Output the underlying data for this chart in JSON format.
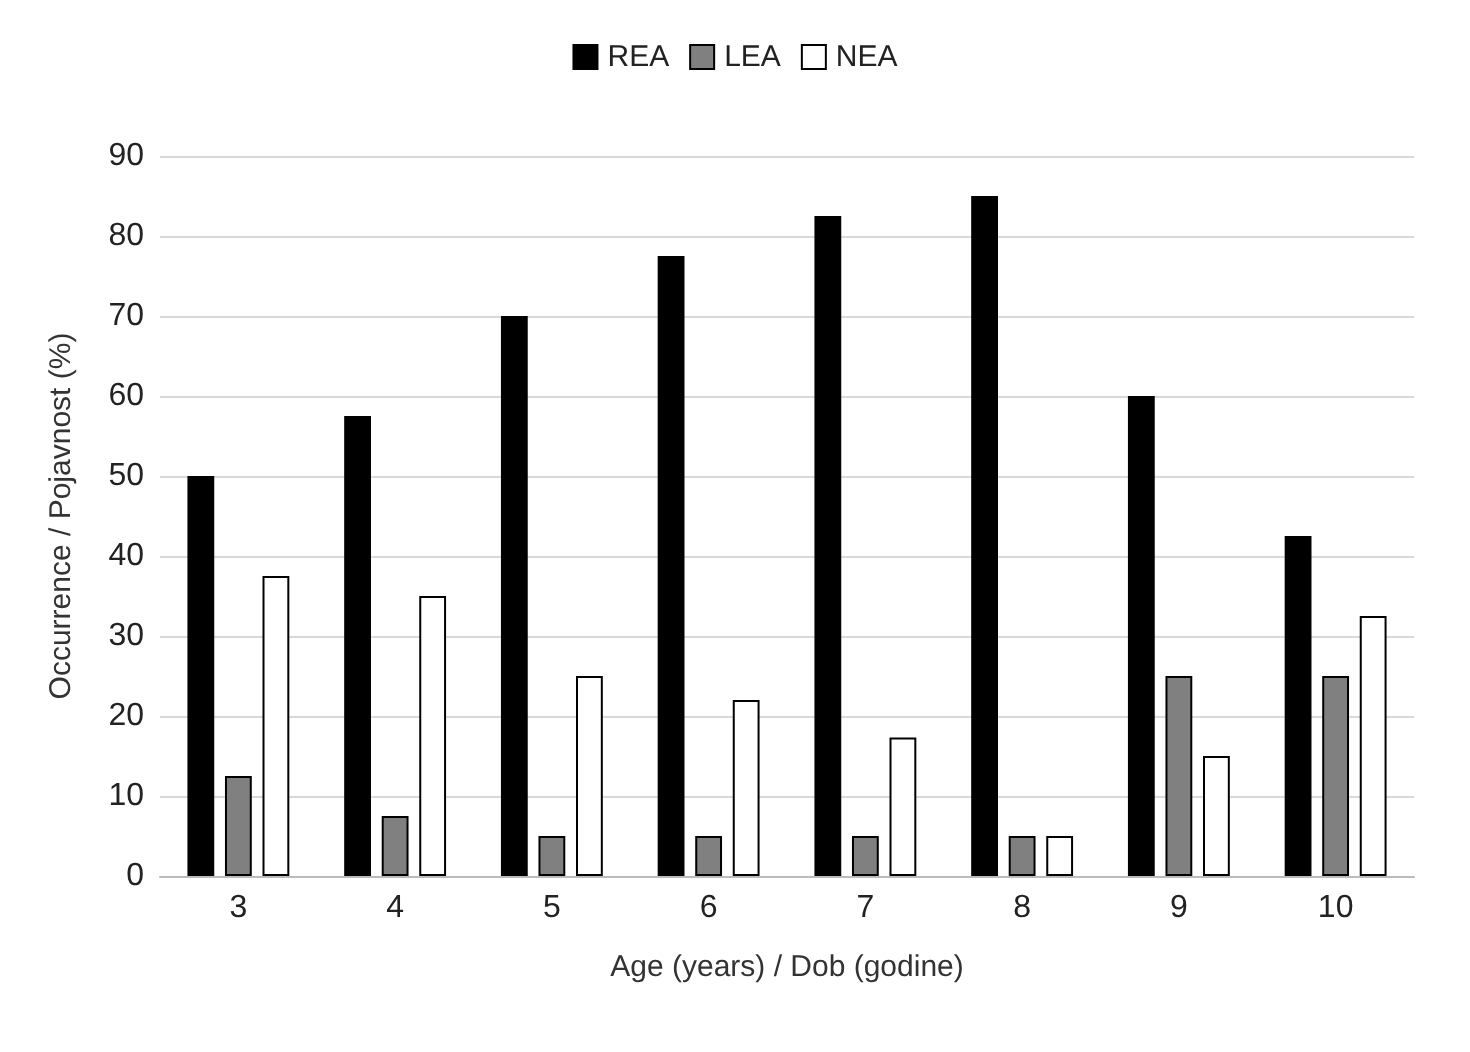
{
  "chart_data": {
    "type": "bar",
    "xlabel": "Age (years) / Dob (godine)",
    "ylabel": "Occurrence / Pojavnost (%)",
    "categories": [
      "3",
      "4",
      "5",
      "6",
      "7",
      "8",
      "9",
      "10"
    ],
    "series": [
      {
        "name": "REA",
        "color": "#000000",
        "values": [
          50,
          57.5,
          70,
          77.5,
          82.5,
          85,
          60,
          42.5
        ]
      },
      {
        "name": "LEA",
        "color": "#808080",
        "values": [
          12.5,
          7.5,
          5,
          5,
          5,
          5,
          25,
          25
        ]
      },
      {
        "name": "NEA",
        "color": "#ffffff",
        "values": [
          37.5,
          35,
          25,
          22,
          17.3,
          5,
          15,
          32.5
        ]
      }
    ],
    "ylim": [
      0,
      90
    ],
    "yticks": [
      0,
      10,
      20,
      30,
      40,
      50,
      60,
      70,
      80,
      90
    ],
    "grid": "y",
    "legend": "top"
  }
}
